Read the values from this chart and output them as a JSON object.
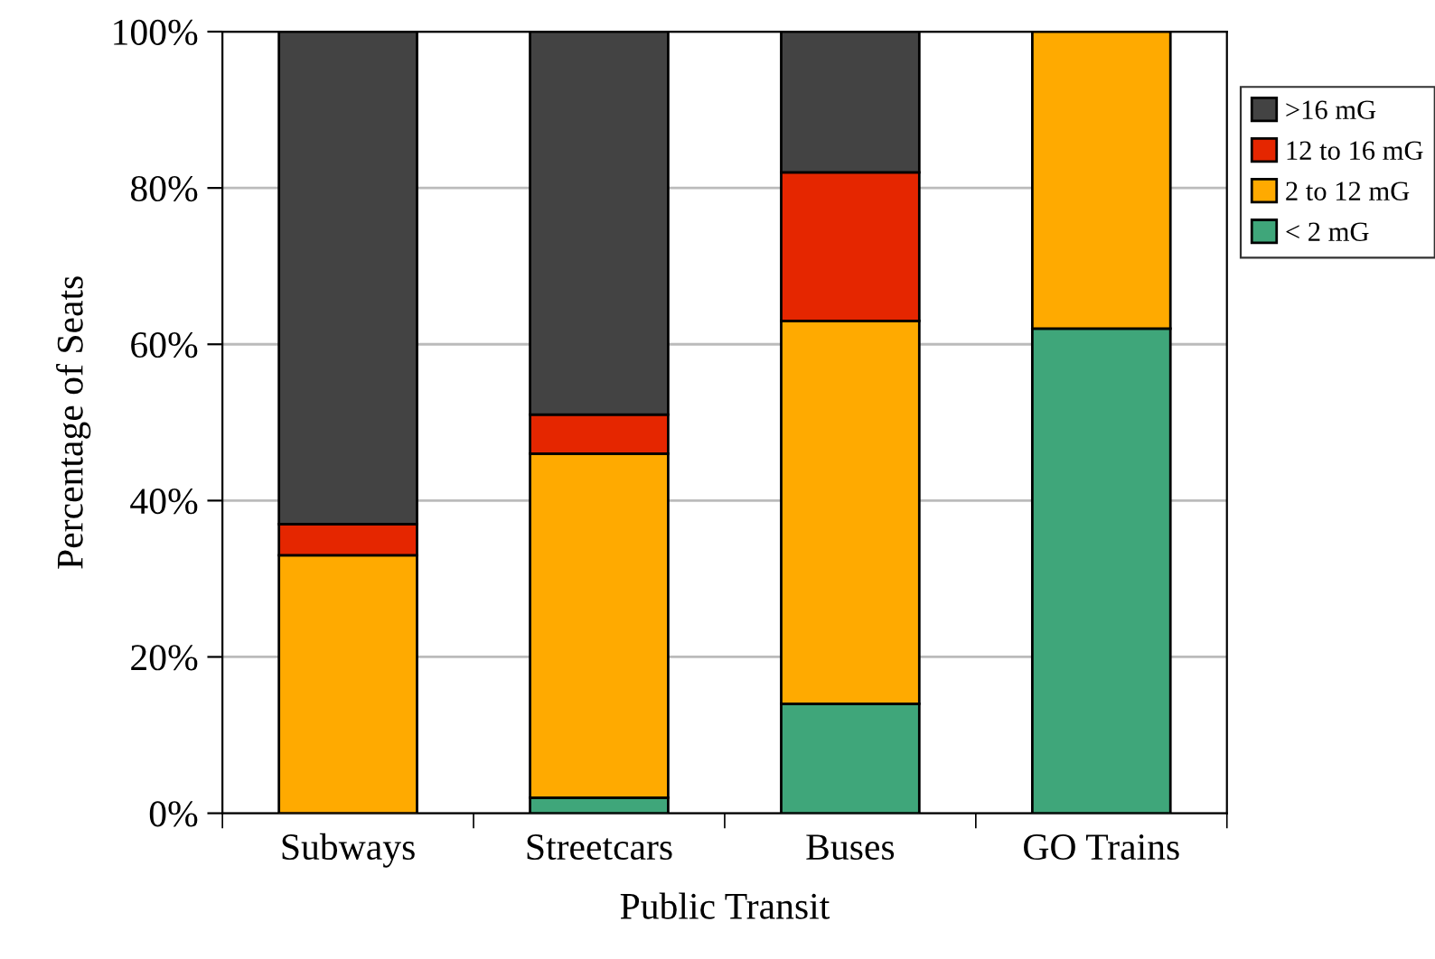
{
  "chart_data": {
    "type": "bar",
    "stacked": true,
    "xlabel": "Public Transit",
    "ylabel": "Percentage of Seats",
    "categories": [
      "Subways",
      "Streetcars",
      "Buses",
      "GO Trains"
    ],
    "series": [
      {
        "name": "< 2 mG",
        "color": "#3fa67a",
        "values": [
          0,
          2,
          14,
          62
        ]
      },
      {
        "name": "2 to 12 mG",
        "color": "#ffaa00",
        "values": [
          33,
          44,
          49,
          38
        ]
      },
      {
        "name": "12 to 16 mG",
        "color": "#e52600",
        "values": [
          4,
          5,
          19,
          null
        ]
      },
      {
        "name": ">16 mG",
        "color": "#434343",
        "values": [
          63,
          49,
          18,
          null
        ]
      }
    ],
    "ylim": [
      0,
      100
    ],
    "yticks": [
      {
        "value": 0,
        "label": "0%"
      },
      {
        "value": 20,
        "label": "20%"
      },
      {
        "value": 40,
        "label": "40%"
      },
      {
        "value": 60,
        "label": "60%"
      },
      {
        "value": 80,
        "label": "80%"
      },
      {
        "value": 100,
        "label": "100%"
      }
    ],
    "grid": "y",
    "legend": "right"
  }
}
